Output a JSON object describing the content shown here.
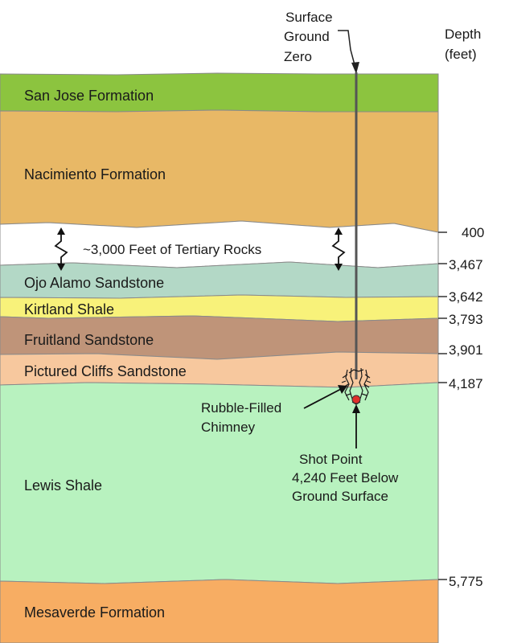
{
  "header": {
    "depth_title_line1": "Depth",
    "depth_title_line2": "(feet)"
  },
  "annotations": {
    "surface_line1": "Surface",
    "surface_line2": "Ground",
    "surface_line3": "Zero",
    "tertiary": "~3,000 Feet of Tertiary Rocks",
    "chimney_line1": "Rubble-Filled",
    "chimney_line2": "Chimney",
    "shot_line1": "Shot Point",
    "shot_line2": "4,240 Feet Below",
    "shot_line3": "Ground Surface"
  },
  "layers": [
    {
      "name": "San Jose Formation",
      "color": "#8cc43f"
    },
    {
      "name": "Nacimiento Formation",
      "color": "#e8b866"
    },
    {
      "name": "Ojo Alamo Sandstone",
      "color": "#b3d8c6"
    },
    {
      "name": "Kirtland Shale",
      "color": "#f8f27a"
    },
    {
      "name": "Fruitland Sandstone",
      "color": "#bf9479"
    },
    {
      "name": "Pictured Cliffs Sandstone",
      "color": "#f7c89e"
    },
    {
      "name": "Lewis Shale",
      "color": "#b8f2bf"
    },
    {
      "name": "Mesaverde Formation",
      "color": "#f7ad63"
    }
  ],
  "depths": [
    "400",
    "3,467",
    "3,642",
    "3,793",
    "3,901",
    "4,187",
    "5,775"
  ]
}
